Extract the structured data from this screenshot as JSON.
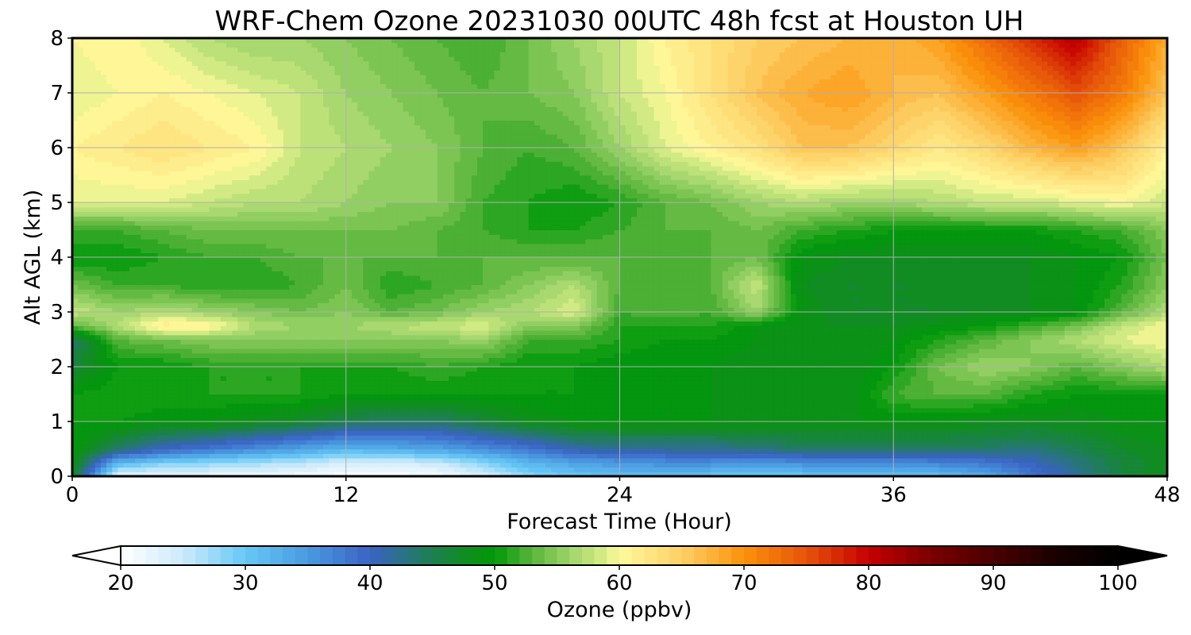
{
  "chart_data": {
    "type": "heatmap",
    "title": "WRF-Chem Ozone  20231030 00UTC 48h fcst at Houston UH",
    "xlabel": "Forecast Time (Hour)",
    "ylabel": "Alt AGL (km)",
    "xlim": [
      0,
      48
    ],
    "ylim": [
      0,
      8
    ],
    "x_ticks": [
      "0",
      "12",
      "24",
      "36",
      "48"
    ],
    "y_ticks": [
      "0",
      "1",
      "2",
      "3",
      "4",
      "5",
      "6",
      "7",
      "8"
    ],
    "grid": true,
    "x": [
      0,
      2,
      4,
      6,
      8,
      10,
      12,
      14,
      16,
      18,
      20,
      22,
      24,
      26,
      28,
      30,
      32,
      34,
      36,
      38,
      40,
      42,
      44,
      46,
      48
    ],
    "y": [
      0,
      0.25,
      0.5,
      1,
      1.5,
      2,
      2.5,
      2.75,
      3,
      3.5,
      4,
      4.5,
      5,
      6,
      7,
      8
    ],
    "z": [
      [
        48,
        22,
        22,
        22,
        22,
        21,
        20,
        20,
        21,
        24,
        28,
        30,
        31,
        31,
        30,
        30,
        30,
        31,
        31,
        31,
        33,
        38,
        42,
        46,
        48
      ],
      [
        49,
        32,
        29,
        28,
        27,
        26,
        24,
        24,
        25,
        28,
        32,
        34,
        35,
        36,
        36,
        35,
        36,
        36,
        36,
        37,
        38,
        40,
        43,
        46,
        48
      ],
      [
        50,
        44,
        40,
        38,
        36,
        34,
        32,
        33,
        34,
        36,
        38,
        41,
        42,
        42,
        42,
        43,
        44,
        44,
        44,
        44,
        44,
        43,
        45,
        47,
        48
      ],
      [
        50,
        50,
        49,
        49,
        48,
        47,
        45,
        44,
        44,
        46,
        48,
        49,
        49,
        49,
        49,
        49,
        49,
        49,
        49,
        49,
        48,
        48,
        48,
        49,
        49
      ],
      [
        50,
        51,
        51,
        51,
        51,
        51,
        50,
        50,
        50,
        50,
        50,
        50,
        50,
        49,
        49,
        48,
        48,
        48,
        52,
        53,
        53,
        51,
        50,
        50,
        50
      ],
      [
        46,
        50,
        50,
        51,
        51,
        51,
        51,
        51,
        52,
        51,
        50,
        50,
        49,
        49,
        49,
        48,
        48,
        48,
        50,
        54,
        56,
        55,
        53,
        55,
        57
      ],
      [
        44,
        53,
        54,
        55,
        55,
        55,
        55,
        55,
        55,
        56,
        52,
        52,
        51,
        50,
        50,
        49,
        48,
        48,
        49,
        51,
        53,
        55,
        57,
        59,
        60
      ],
      [
        53,
        57,
        62,
        61,
        57,
        56,
        56,
        57,
        58,
        59,
        55,
        55,
        51,
        51,
        51,
        49,
        48,
        48,
        48,
        49,
        50,
        52,
        54,
        58,
        60
      ],
      [
        58,
        56,
        57,
        56,
        55,
        54,
        55,
        53,
        54,
        56,
        57,
        59,
        52,
        53,
        52,
        56,
        49,
        47,
        47,
        47,
        48,
        48,
        49,
        53,
        57
      ],
      [
        54,
        52,
        52,
        51,
        51,
        52,
        54,
        51,
        52,
        53,
        55,
        57,
        53,
        52,
        53,
        58,
        48,
        47,
        47,
        47,
        47,
        48,
        49,
        51,
        55
      ],
      [
        50,
        50,
        51,
        52,
        52,
        53,
        53,
        53,
        53,
        53,
        53,
        53,
        53,
        52,
        53,
        54,
        49,
        48,
        48,
        48,
        48,
        48,
        49,
        50,
        54
      ],
      [
        52,
        52,
        53,
        54,
        54,
        54,
        54,
        54,
        53,
        52,
        51,
        51,
        52,
        53,
        53,
        54,
        52,
        51,
        50,
        50,
        50,
        50,
        51,
        52,
        55
      ],
      [
        59,
        59,
        59,
        58,
        57,
        57,
        56,
        55,
        55,
        52,
        51,
        50,
        51,
        53,
        54,
        56,
        57,
        56,
        56,
        57,
        58,
        58,
        59,
        60,
        58
      ],
      [
        61,
        62,
        63,
        62,
        61,
        58,
        57,
        56,
        55,
        53,
        52,
        53,
        56,
        59,
        61,
        63,
        66,
        66,
        64,
        62,
        64,
        67,
        69,
        66,
        61
      ],
      [
        59,
        60,
        61,
        60,
        59,
        58,
        56,
        55,
        54,
        53,
        54,
        55,
        58,
        60,
        63,
        66,
        68,
        69,
        67,
        66,
        69,
        72,
        75,
        72,
        66
      ],
      [
        60,
        61,
        59,
        57,
        56,
        56,
        55,
        54,
        53,
        52,
        54,
        56,
        58,
        61,
        63,
        65,
        66,
        67,
        67,
        69,
        73,
        77,
        81,
        74,
        68
      ]
    ],
    "colorbar": {
      "label": "Ozone  (ppbv)",
      "min": 20,
      "max": 100,
      "step": 1,
      "extend": "both",
      "ticks": [
        "20",
        "30",
        "40",
        "50",
        "60",
        "70",
        "80",
        "90",
        "100"
      ],
      "colors": [
        [
          20,
          "#ffffff"
        ],
        [
          25,
          "#cdeafa"
        ],
        [
          30,
          "#66c8f5"
        ],
        [
          35,
          "#4a9ae0"
        ],
        [
          40,
          "#3a62c4"
        ],
        [
          45,
          "#1d8050"
        ],
        [
          48,
          "#0d8e1a"
        ],
        [
          50,
          "#00980a"
        ],
        [
          53,
          "#5ab53c"
        ],
        [
          56,
          "#9dd46a"
        ],
        [
          59,
          "#dcee88"
        ],
        [
          60,
          "#fffa9c"
        ],
        [
          65,
          "#fdd066"
        ],
        [
          70,
          "#fb920a"
        ],
        [
          75,
          "#e6530a"
        ],
        [
          80,
          "#c60000"
        ],
        [
          85,
          "#7a0000"
        ],
        [
          90,
          "#4a0000"
        ],
        [
          95,
          "#1a0000"
        ],
        [
          100,
          "#000000"
        ]
      ]
    }
  }
}
